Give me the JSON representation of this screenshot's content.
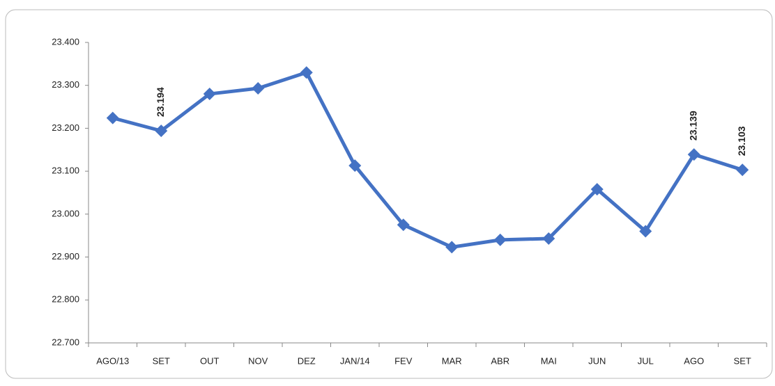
{
  "chart_data": {
    "type": "line",
    "categories": [
      "AGO/13",
      "SET",
      "OUT",
      "NOV",
      "DEZ",
      "JAN/14",
      "FEV",
      "MAR",
      "ABR",
      "MAI",
      "JUN",
      "JUL",
      "AGO",
      "SET"
    ],
    "series": [
      {
        "color": "#4472c4",
        "values": [
          23224,
          23194,
          23280,
          23293,
          23330,
          23113,
          22975,
          22923,
          22940,
          22943,
          23058,
          22960,
          23139,
          23103
        ],
        "value_labels": [
          null,
          "23.194",
          null,
          null,
          null,
          null,
          null,
          null,
          null,
          null,
          null,
          null,
          "23.139",
          "23.103"
        ]
      }
    ],
    "ylim": [
      22700,
      23400
    ],
    "yticks": [
      {
        "value": 22700,
        "label": "22.700"
      },
      {
        "value": 22800,
        "label": "22.800"
      },
      {
        "value": 22900,
        "label": "22.900"
      },
      {
        "value": 23000,
        "label": "23.000"
      },
      {
        "value": 23100,
        "label": "23.100"
      },
      {
        "value": 23200,
        "label": "23.200"
      },
      {
        "value": 23300,
        "label": "23.300"
      },
      {
        "value": 23400,
        "label": "23.400"
      }
    ]
  }
}
